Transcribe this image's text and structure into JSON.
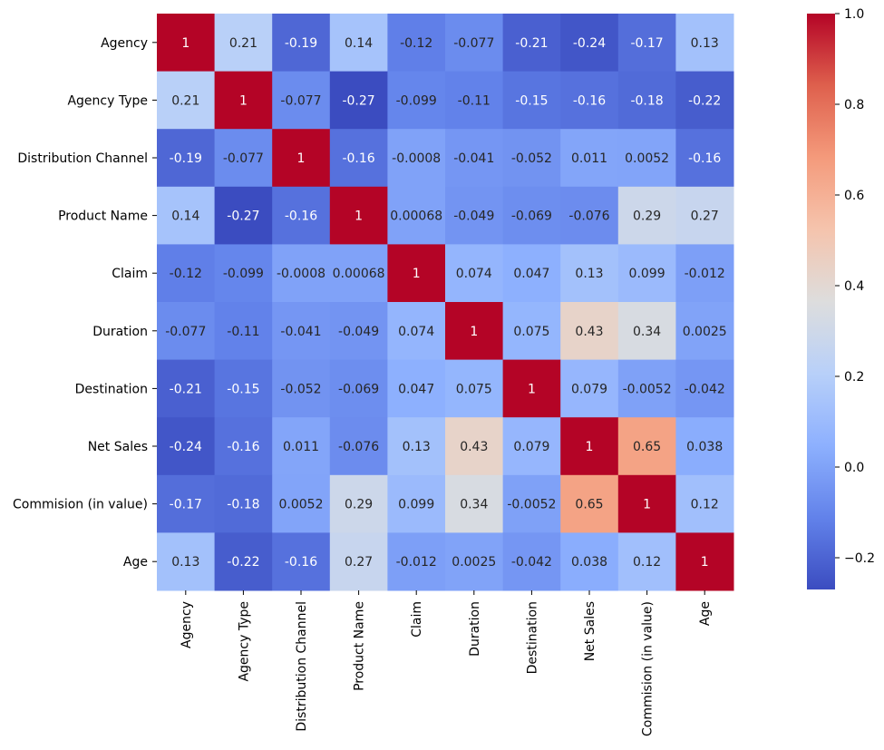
{
  "chart_data": {
    "type": "heatmap",
    "labels": [
      "Agency",
      "Agency Type",
      "Distribution Channel",
      "Product Name",
      "Claim",
      "Duration",
      "Destination",
      "Net Sales",
      "Commision (in value)",
      "Age"
    ],
    "matrix": [
      [
        1,
        0.21,
        -0.19,
        0.14,
        -0.12,
        -0.077,
        -0.21,
        -0.24,
        -0.17,
        0.13
      ],
      [
        0.21,
        1,
        -0.077,
        -0.27,
        -0.099,
        -0.11,
        -0.15,
        -0.16,
        -0.18,
        -0.22
      ],
      [
        -0.19,
        -0.077,
        1,
        -0.16,
        -0.0008,
        -0.041,
        -0.052,
        0.011,
        0.0052,
        -0.16
      ],
      [
        0.14,
        -0.27,
        -0.16,
        1,
        0.00068,
        -0.049,
        -0.069,
        -0.076,
        0.29,
        0.27
      ],
      [
        -0.12,
        -0.099,
        -0.0008,
        0.00068,
        1,
        0.074,
        0.047,
        0.13,
        0.099,
        -0.012
      ],
      [
        -0.077,
        -0.11,
        -0.041,
        -0.049,
        0.074,
        1,
        0.075,
        0.43,
        0.34,
        0.0025
      ],
      [
        -0.21,
        -0.15,
        -0.052,
        -0.069,
        0.047,
        0.075,
        1,
        0.079,
        -0.0052,
        -0.042
      ],
      [
        -0.24,
        -0.16,
        0.011,
        -0.076,
        0.13,
        0.43,
        0.079,
        1,
        0.65,
        0.038
      ],
      [
        -0.17,
        -0.18,
        0.0052,
        0.29,
        0.099,
        0.34,
        -0.0052,
        0.65,
        1,
        0.12
      ],
      [
        0.13,
        -0.22,
        -0.16,
        0.27,
        -0.012,
        0.0025,
        -0.042,
        0.038,
        0.12,
        1
      ]
    ],
    "cell_labels": [
      [
        "1",
        "0.21",
        "-0.19",
        "0.14",
        "-0.12",
        "-0.077",
        "-0.21",
        "-0.24",
        "-0.17",
        "0.13"
      ],
      [
        "0.21",
        "1",
        "-0.077",
        "-0.27",
        "-0.099",
        "-0.11",
        "-0.15",
        "-0.16",
        "-0.18",
        "-0.22"
      ],
      [
        "-0.19",
        "-0.077",
        "1",
        "-0.16",
        "-0.0008",
        "-0.041",
        "-0.052",
        "0.011",
        "0.0052",
        "-0.16"
      ],
      [
        "0.14",
        "-0.27",
        "-0.16",
        "1",
        "0.00068",
        "-0.049",
        "-0.069",
        "-0.076",
        "0.29",
        "0.27"
      ],
      [
        "-0.12",
        "-0.099",
        "-0.0008",
        "0.00068",
        "1",
        "0.074",
        "0.047",
        "0.13",
        "0.099",
        "-0.012"
      ],
      [
        "-0.077",
        "-0.11",
        "-0.041",
        "-0.049",
        "0.074",
        "1",
        "0.075",
        "0.43",
        "0.34",
        "0.0025"
      ],
      [
        "-0.21",
        "-0.15",
        "-0.052",
        "-0.069",
        "0.047",
        "0.075",
        "1",
        "0.079",
        "-0.0052",
        "-0.042"
      ],
      [
        "-0.24",
        "-0.16",
        "0.011",
        "-0.076",
        "0.13",
        "0.43",
        "0.079",
        "1",
        "0.65",
        "0.038"
      ],
      [
        "-0.17",
        "-0.18",
        "0.0052",
        "0.29",
        "0.099",
        "0.34",
        "-0.0052",
        "0.65",
        "1",
        "0.12"
      ],
      [
        "0.13",
        "-0.22",
        "-0.16",
        "0.27",
        "-0.012",
        "0.0025",
        "-0.042",
        "0.038",
        "0.12",
        "1"
      ]
    ],
    "colorscale": "coolwarm",
    "vmin": -0.27,
    "vmax": 1.0,
    "colorbar": {
      "ticks": [
        -0.2,
        0.0,
        0.2,
        0.4,
        0.6,
        0.8,
        1.0
      ],
      "tick_labels": [
        "−0.2",
        "0.0",
        "0.2",
        "0.4",
        "0.6",
        "0.8",
        "1.0"
      ],
      "placement": "right"
    },
    "title": "",
    "xlabel": "",
    "ylabel": "",
    "grid": false
  }
}
